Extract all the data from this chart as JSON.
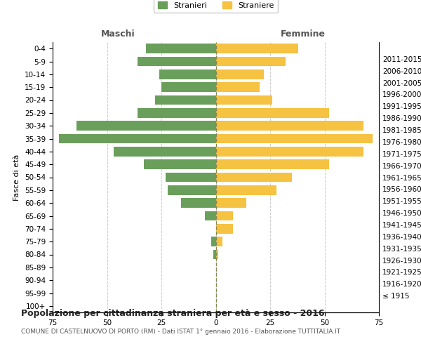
{
  "age_groups": [
    "100+",
    "95-99",
    "90-94",
    "85-89",
    "80-84",
    "75-79",
    "70-74",
    "65-69",
    "60-64",
    "55-59",
    "50-54",
    "45-49",
    "40-44",
    "35-39",
    "30-34",
    "25-29",
    "20-24",
    "15-19",
    "10-14",
    "5-9",
    "0-4"
  ],
  "birth_years": [
    "≤ 1915",
    "1916-1920",
    "1921-1925",
    "1926-1930",
    "1931-1935",
    "1936-1940",
    "1941-1945",
    "1946-1950",
    "1951-1955",
    "1956-1960",
    "1961-1965",
    "1966-1970",
    "1971-1975",
    "1976-1980",
    "1981-1985",
    "1986-1990",
    "1991-1995",
    "1996-2000",
    "2001-2005",
    "2006-2010",
    "2011-2015"
  ],
  "maschi": [
    0,
    0,
    0,
    0,
    1,
    2,
    0,
    5,
    16,
    22,
    23,
    33,
    47,
    72,
    64,
    36,
    28,
    25,
    26,
    36,
    32
  ],
  "femmine": [
    0,
    0,
    0,
    0,
    1,
    3,
    8,
    8,
    14,
    28,
    35,
    52,
    68,
    72,
    68,
    52,
    26,
    20,
    22,
    32,
    38
  ],
  "male_color": "#6a9f5b",
  "female_color": "#f5c242",
  "title": "Popolazione per cittadinanza straniera per età e sesso - 2016",
  "subtitle": "COMUNE DI CASTELNUOVO DI PORTO (RM) - Dati ISTAT 1° gennaio 2016 - Elaborazione TUTTITALIA.IT",
  "xlabel_left": "Maschi",
  "xlabel_right": "Femmine",
  "ylabel_left": "Fasce di età",
  "legend_male": "Stranieri",
  "legend_female": "Straniere",
  "xlim": 75,
  "background_color": "#ffffff",
  "grid_color": "#cccccc",
  "dashed_line_color": "#888855"
}
